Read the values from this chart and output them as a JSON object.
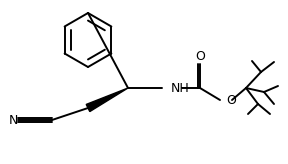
{
  "bg_color": "#ffffff",
  "lc": "#000000",
  "lw": 1.4,
  "figsize": [
    2.88,
    1.64
  ],
  "dpi": 100,
  "xlim": [
    0,
    288
  ],
  "ylim": [
    0,
    164
  ]
}
